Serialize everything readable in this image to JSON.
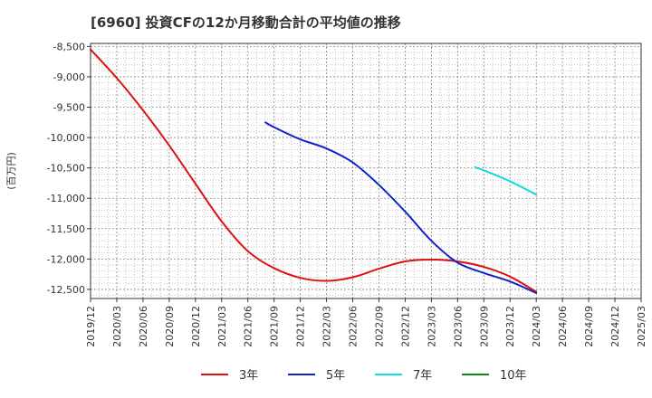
{
  "chart_data": {
    "type": "line",
    "title": "[6960]  投資CFの12か月移動合計の平均値の推移",
    "ylabel": "(百万円)",
    "xlabel": "",
    "ylim": [
      -12650,
      -8450
    ],
    "yticks": [
      -8500,
      -9000,
      -9500,
      -10000,
      -10500,
      -11000,
      -11500,
      -12000,
      -12500
    ],
    "ytick_labels": [
      "-8,500",
      "-9,000",
      "-9,500",
      "-10,000",
      "-10,500",
      "-11,000",
      "-11,500",
      "-12,000",
      "-12,500"
    ],
    "xticks": [
      "2019/12",
      "2020/03",
      "2020/06",
      "2020/09",
      "2020/12",
      "2021/03",
      "2021/06",
      "2021/09",
      "2021/12",
      "2022/03",
      "2022/06",
      "2022/09",
      "2022/12",
      "2023/03",
      "2023/06",
      "2023/09",
      "2023/12",
      "2024/03",
      "2024/06",
      "2024/09",
      "2024/12",
      "2025/03"
    ],
    "grid": true,
    "legend": "bottom",
    "series": [
      {
        "name": "3年",
        "color": "#dd1111",
        "x": [
          "2019/12",
          "2020/03",
          "2020/06",
          "2020/09",
          "2020/12",
          "2021/03",
          "2021/06",
          "2021/09",
          "2021/12",
          "2022/03",
          "2022/06",
          "2022/09",
          "2022/12",
          "2023/03",
          "2023/06",
          "2023/09",
          "2023/12",
          "2024/03"
        ],
        "values": [
          -8550,
          -9020,
          -9550,
          -10130,
          -10760,
          -11380,
          -11870,
          -12150,
          -12310,
          -12360,
          -12300,
          -12160,
          -12040,
          -12010,
          -12040,
          -12130,
          -12290,
          -12540
        ]
      },
      {
        "name": "5年",
        "color": "#1122cc",
        "x": [
          "2021/08",
          "2021/09",
          "2021/12",
          "2022/03",
          "2022/06",
          "2022/09",
          "2022/12",
          "2023/03",
          "2023/06",
          "2023/09",
          "2023/12",
          "2024/03"
        ],
        "values": [
          -9750,
          -9830,
          -10030,
          -10180,
          -10410,
          -10780,
          -11220,
          -11700,
          -12060,
          -12230,
          -12370,
          -12560
        ]
      },
      {
        "name": "7年",
        "color": "#11dddd",
        "x": [
          "2023/08",
          "2023/09",
          "2023/12",
          "2024/03"
        ],
        "values": [
          -10490,
          -10540,
          -10720,
          -10940
        ]
      },
      {
        "name": "10年",
        "color": "#118811",
        "x": [],
        "values": []
      }
    ]
  }
}
